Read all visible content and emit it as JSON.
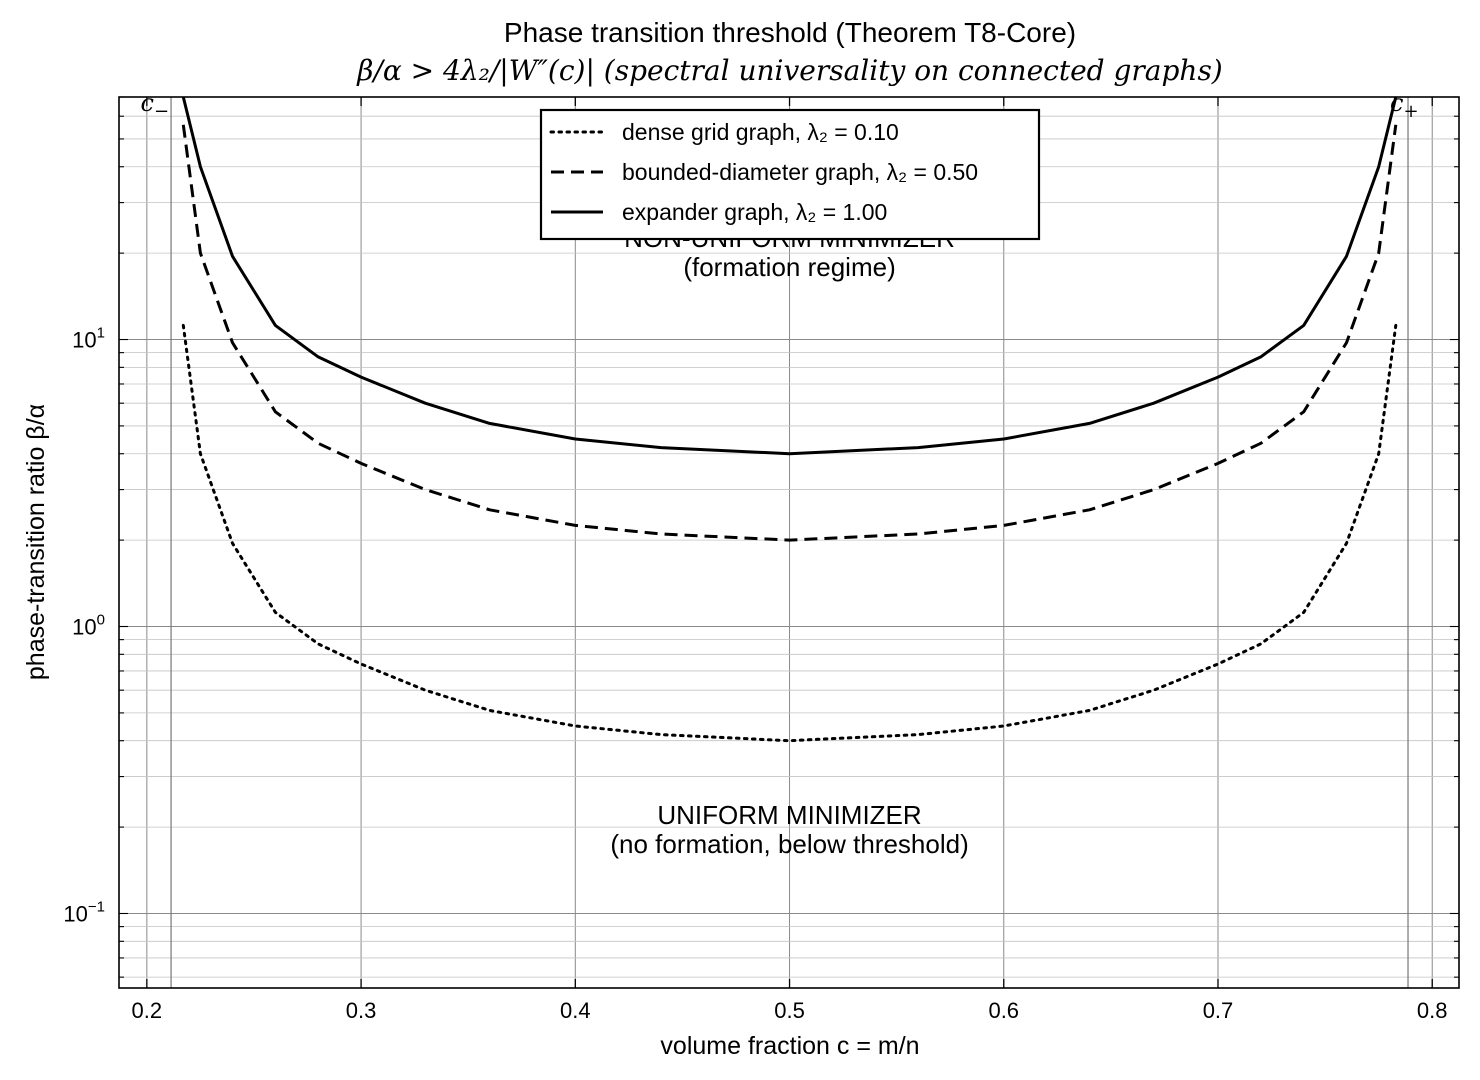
{
  "chart_data": {
    "type": "line",
    "title": "Phase transition threshold  (Theorem T8-Core)",
    "subtitle": "β/α > 4λ₂/|W″(c)|  (spectral universality on connected graphs)",
    "xlabel": "volume fraction  c = m/n",
    "ylabel": "phase-transition ratio  β/α",
    "xlim": [
      0.187,
      0.8125
    ],
    "ylim": [
      0.055,
      70
    ],
    "yscale": "log",
    "grid": true,
    "legend_position": "top-center",
    "x_ticks": [
      0.2,
      0.3,
      0.4,
      0.5,
      0.6,
      0.7,
      0.8
    ],
    "x_tick_labels": [
      "0.2",
      "0.3",
      "0.4",
      "0.5",
      "0.6",
      "0.7",
      "0.8"
    ],
    "y_ticks": [
      0.1,
      1,
      10
    ],
    "y_tick_labels": [
      {
        "base": "10",
        "exp": "−1"
      },
      {
        "base": "10",
        "exp": "0"
      },
      {
        "base": "10",
        "exp": "1"
      }
    ],
    "x": [
      0.217,
      0.225,
      0.24,
      0.26,
      0.28,
      0.3,
      0.33,
      0.36,
      0.4,
      0.44,
      0.5,
      0.56,
      0.6,
      0.64,
      0.67,
      0.7,
      0.72,
      0.74,
      0.76,
      0.775,
      0.783
    ],
    "series": [
      {
        "name": "dense grid graph,  λ₂ = 0.10",
        "dash": "dotted",
        "lambda2": 0.1,
        "values": [
          11.2,
          4.0,
          1.95,
          1.12,
          0.87,
          0.74,
          0.6,
          0.51,
          0.45,
          0.42,
          0.4,
          0.42,
          0.45,
          0.51,
          0.6,
          0.74,
          0.87,
          1.12,
          1.95,
          4.0,
          11.2
        ]
      },
      {
        "name": "bounded-diameter graph,  λ₂ = 0.50",
        "dash": "dashed",
        "lambda2": 0.5,
        "values": [
          56,
          20,
          9.75,
          5.6,
          4.35,
          3.7,
          3.0,
          2.55,
          2.25,
          2.1,
          2.0,
          2.1,
          2.25,
          2.55,
          3.0,
          3.7,
          4.35,
          5.6,
          9.75,
          20,
          56
        ]
      },
      {
        "name": "expander graph,  λ₂ = 1.00",
        "dash": "solid",
        "lambda2": 1.0,
        "values": [
          70,
          40,
          19.5,
          11.2,
          8.7,
          7.4,
          6.0,
          5.1,
          4.5,
          4.2,
          4.0,
          4.2,
          4.5,
          5.1,
          6.0,
          7.4,
          8.7,
          11.2,
          19.5,
          40,
          70
        ]
      }
    ],
    "markers": [
      {
        "label": "c",
        "sub": "−",
        "x": 0.2113
      },
      {
        "label": "c",
        "sub": "+",
        "x": 0.7887
      }
    ],
    "annotations": [
      {
        "lines": [
          "NON-UNIFORM MINIMIZER",
          "(formation regime)"
        ],
        "x": 0.5,
        "y": 21
      },
      {
        "lines": [
          "UNIFORM MINIMIZER",
          "(no formation, below threshold)"
        ],
        "x": 0.5,
        "y": 0.205
      }
    ]
  }
}
